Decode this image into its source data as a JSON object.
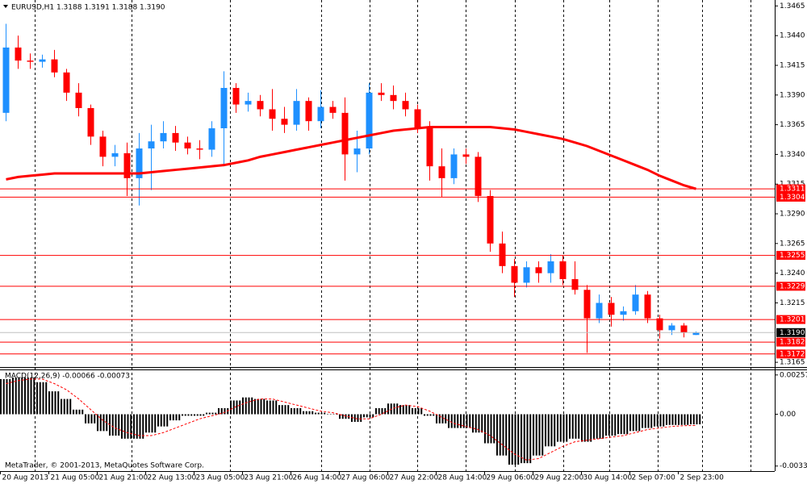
{
  "chart_data": [
    {
      "type": "candlestick",
      "title": "EURUSD,H1  1.3188 1.3191 1.3188 1.3190",
      "categories": [
        "20 Aug 2013",
        null,
        null,
        null,
        "21 Aug 05:00",
        null,
        null,
        null,
        "21 Aug 21:00",
        null,
        null,
        null,
        "22 Aug 13:00",
        null,
        null,
        null,
        "23 Aug 05:00",
        null,
        null,
        null,
        "23 Aug 21:00",
        null,
        null,
        null,
        "26 Aug 14:00",
        null,
        null,
        null,
        "27 Aug 06:00",
        null,
        null,
        null,
        "27 Aug 22:00",
        null,
        null,
        null,
        "28 Aug 14:00",
        null,
        null,
        null,
        "29 Aug 06:00",
        null,
        null,
        null,
        "29 Aug 22:00",
        null,
        null,
        null,
        "30 Aug 14:00",
        null,
        null,
        null,
        "2 Sep 07:00",
        null,
        null,
        null,
        "2 Sep 23:00",
        null
      ],
      "open": [
        1.3375,
        1.343,
        1.3419,
        1.3418,
        1.342,
        1.3409,
        1.3392,
        1.3379,
        1.3355,
        1.3338,
        1.3341,
        1.332,
        1.3345,
        1.3351,
        1.3358,
        1.335,
        1.3345,
        1.3344,
        1.3362,
        1.3396,
        1.3382,
        1.3385,
        1.3378,
        1.337,
        1.3365,
        1.3385,
        1.3368,
        1.338,
        1.3375,
        1.334,
        1.3345,
        1.3392,
        1.339,
        1.3385,
        1.3378,
        1.3362,
        1.333,
        1.332,
        1.334,
        1.3338,
        1.3305,
        1.3265,
        1.3246,
        1.3232,
        1.3245,
        1.324,
        1.325,
        1.3235,
        1.3226,
        1.3202,
        1.3215,
        1.3205,
        1.3208,
        1.3222,
        1.3202,
        1.3192,
        1.3196,
        1.3188
      ],
      "high": [
        1.345,
        1.344,
        1.3425,
        1.3424,
        1.3428,
        1.3412,
        1.34,
        1.3382,
        1.336,
        1.3348,
        1.335,
        1.3358,
        1.3365,
        1.3368,
        1.3364,
        1.3355,
        1.3352,
        1.3368,
        1.341,
        1.34,
        1.3392,
        1.339,
        1.3395,
        1.338,
        1.3395,
        1.3388,
        1.3394,
        1.3385,
        1.3388,
        1.336,
        1.34,
        1.34,
        1.3398,
        1.3392,
        1.3382,
        1.3368,
        1.3345,
        1.3345,
        1.3345,
        1.3342,
        1.331,
        1.3275,
        1.3252,
        1.325,
        1.325,
        1.3256,
        1.3255,
        1.325,
        1.323,
        1.3222,
        1.322,
        1.3212,
        1.323,
        1.3225,
        1.3205,
        1.3198,
        1.3198,
        1.3191
      ],
      "low": [
        1.3368,
        1.3412,
        1.3412,
        1.3413,
        1.3405,
        1.3385,
        1.3372,
        1.3348,
        1.333,
        1.333,
        1.3305,
        1.3297,
        1.331,
        1.3345,
        1.3343,
        1.334,
        1.3336,
        1.3338,
        1.333,
        1.3375,
        1.3376,
        1.3372,
        1.336,
        1.3358,
        1.336,
        1.336,
        1.3362,
        1.337,
        1.3318,
        1.3325,
        1.334,
        1.3385,
        1.3378,
        1.3372,
        1.3358,
        1.3318,
        1.3304,
        1.3315,
        1.3332,
        1.33,
        1.3258,
        1.324,
        1.322,
        1.3228,
        1.3232,
        1.3232,
        1.323,
        1.3222,
        1.3173,
        1.3198,
        1.3195,
        1.32,
        1.3205,
        1.3198,
        1.3185,
        1.3188,
        1.3186,
        1.3188
      ],
      "close": [
        1.343,
        1.3419,
        1.3418,
        1.342,
        1.3409,
        1.3392,
        1.3379,
        1.3355,
        1.3338,
        1.3341,
        1.332,
        1.3345,
        1.3351,
        1.3358,
        1.335,
        1.3345,
        1.3344,
        1.3362,
        1.3396,
        1.3382,
        1.3385,
        1.3378,
        1.337,
        1.3365,
        1.3385,
        1.3368,
        1.338,
        1.3375,
        1.334,
        1.3345,
        1.3392,
        1.339,
        1.3385,
        1.3378,
        1.3362,
        1.333,
        1.332,
        1.334,
        1.3338,
        1.3305,
        1.3265,
        1.3246,
        1.3232,
        1.3245,
        1.324,
        1.325,
        1.3235,
        1.3226,
        1.3202,
        1.3215,
        1.3205,
        1.3208,
        1.3222,
        1.3202,
        1.3192,
        1.3196,
        1.319,
        1.319
      ],
      "up_color": "#1e90ff",
      "down_color": "#ff0000",
      "ma": {
        "color": "#ff0000",
        "values": [
          1.3319,
          1.3321,
          1.3322,
          1.3323,
          1.3324,
          1.3324,
          1.3324,
          1.3324,
          1.3324,
          1.3324,
          1.3324,
          1.3324,
          1.3325,
          1.3326,
          1.3327,
          1.3328,
          1.3329,
          1.333,
          1.3331,
          1.3333,
          1.3335,
          1.3338,
          1.334,
          1.3342,
          1.3344,
          1.3346,
          1.3348,
          1.335,
          1.3352,
          1.3354,
          1.3356,
          1.3358,
          1.336,
          1.3361,
          1.3362,
          1.3363,
          1.3363,
          1.3363,
          1.3363,
          1.3363,
          1.3363,
          1.3362,
          1.3361,
          1.3359,
          1.3357,
          1.3355,
          1.3353,
          1.335,
          1.3347,
          1.3343,
          1.3339,
          1.3335,
          1.3331,
          1.3327,
          1.3322,
          1.3318,
          1.3314,
          1.3311
        ]
      },
      "levels": {
        "color": "#ff0000",
        "values": [
          1.3311,
          1.3304,
          1.3255,
          1.3229,
          1.3201,
          1.3182,
          1.3172
        ]
      },
      "current": {
        "value": 1.319,
        "label": "1.3190"
      },
      "ylim": [
        1.3161,
        1.347
      ],
      "yticks": [
        1.3465,
        {
          "value": 1.344,
          "label": "1.3440"
        },
        1.3415,
        {
          "value": 1.339,
          "label": "1.3390"
        },
        1.3365,
        {
          "value": 1.334,
          "label": "1.3340"
        },
        1.3315,
        {
          "value": 1.329,
          "label": "1.3290"
        },
        1.3265,
        {
          "value": 1.324,
          "label": "1.3240"
        },
        1.3215,
        1.3165
      ]
    },
    {
      "type": "macd",
      "title": "MACD(12,26,9) -0.00066 -0.00073",
      "histogram": {
        "color": "#000000",
        "values": [
          0.0023,
          0.0024,
          0.0024,
          0.0021,
          0.0015,
          0.001,
          0.0003,
          -0.0006,
          -0.0011,
          -0.0014,
          -0.0016,
          -0.0016,
          -0.0012,
          -0.0008,
          -0.0004,
          -0.0001,
          -0.0001,
          0.0001,
          0.0004,
          0.0009,
          0.0011,
          0.001,
          0.0009,
          0.0006,
          0.0004,
          0.0002,
          0.0001,
          0.0,
          -0.0003,
          -0.0005,
          -0.0002,
          0.0004,
          0.0007,
          0.0006,
          0.0004,
          -0.0001,
          -0.0006,
          -0.0009,
          -0.0009,
          -0.0012,
          -0.0019,
          -0.0027,
          -0.0033,
          -0.0032,
          -0.0027,
          -0.0021,
          -0.0018,
          -0.0016,
          -0.0018,
          -0.0016,
          -0.0014,
          -0.0013,
          -0.0011,
          -0.0009,
          -0.0008,
          -0.0007,
          -0.0007,
          -0.00066
        ]
      },
      "signal": {
        "color": "#ff0000",
        "values": [
          0.002,
          0.0022,
          0.0023,
          0.0023,
          0.002,
          0.0016,
          0.001,
          0.0003,
          -0.0004,
          -0.0009,
          -0.0012,
          -0.0014,
          -0.0014,
          -0.0012,
          -0.0009,
          -0.0006,
          -0.0003,
          -0.0001,
          0.0001,
          0.0005,
          0.0008,
          0.001,
          0.001,
          0.0008,
          0.0006,
          0.0004,
          0.0002,
          0.0001,
          -0.0001,
          -0.0003,
          -0.0003,
          0.0,
          0.0004,
          0.0006,
          0.0005,
          0.0002,
          -0.0002,
          -0.0006,
          -0.0008,
          -0.001,
          -0.0014,
          -0.002,
          -0.0026,
          -0.003,
          -0.0029,
          -0.0025,
          -0.0021,
          -0.0018,
          -0.0017,
          -0.0016,
          -0.0015,
          -0.0014,
          -0.0012,
          -0.001,
          -0.0009,
          -0.0008,
          -0.00075,
          -0.00073
        ]
      },
      "ylim": [
        -0.00372,
        0.00293
      ],
      "yticks": [
        0.00257,
        {
          "value": 0,
          "label": "0.00"
        },
        -0.00339
      ]
    }
  ],
  "footer": "MetaTrader, © 2001-2013, MetaQuotes Software Corp."
}
